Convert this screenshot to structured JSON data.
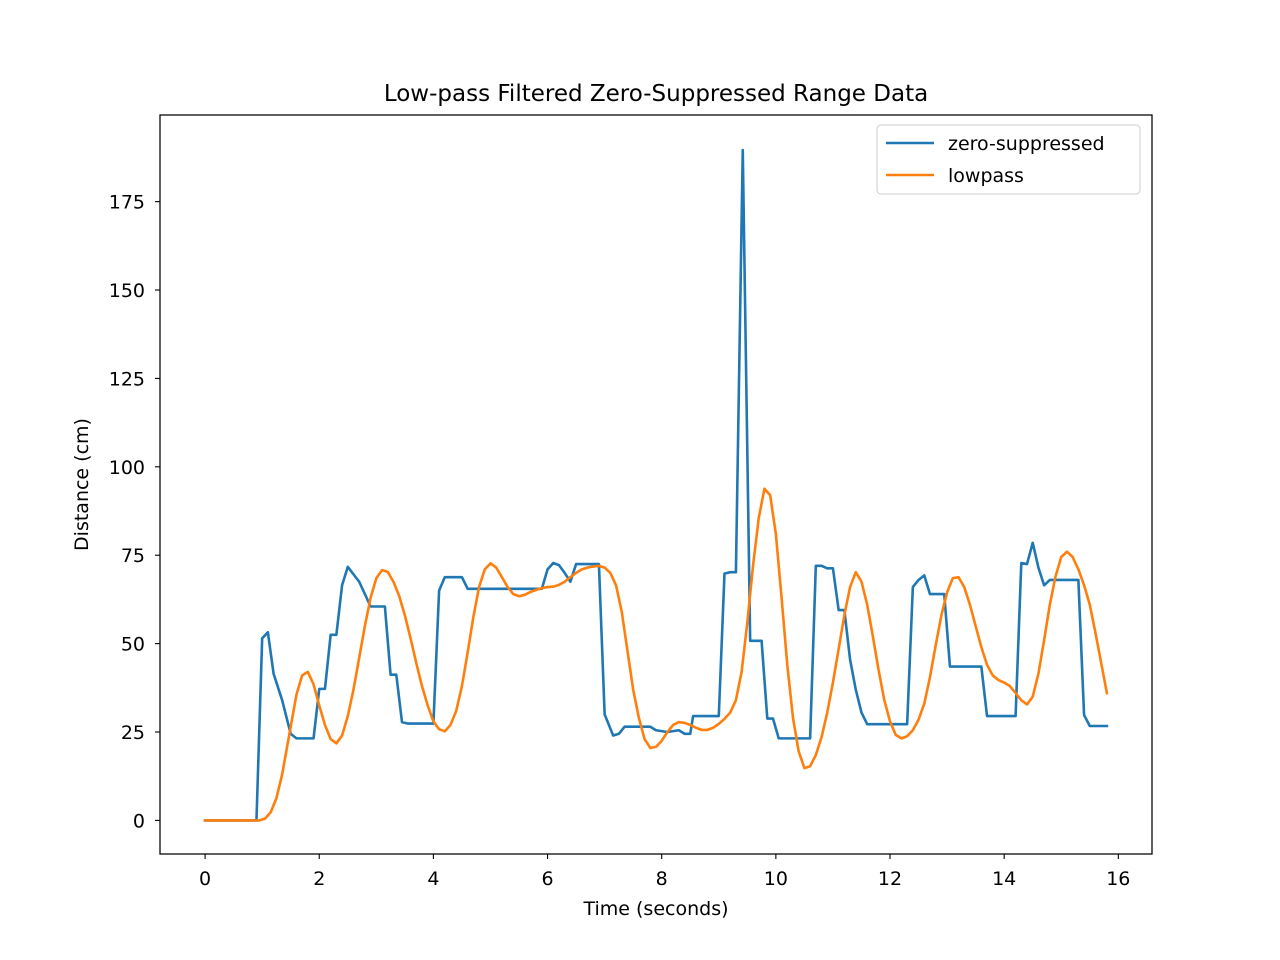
{
  "chart_data": {
    "type": "line",
    "title": "Low-pass Filtered Zero-Suppressed Range Data",
    "xlabel": "Time (seconds)",
    "ylabel": "Distance (cm)",
    "xlim": [
      -0.79,
      16.59
    ],
    "ylim": [
      -9.5,
      199.5
    ],
    "xticks": [
      0,
      2,
      4,
      6,
      8,
      10,
      12,
      14,
      16
    ],
    "yticks": [
      0,
      25,
      50,
      75,
      100,
      125,
      150,
      175
    ],
    "grid": false,
    "legend_position": "top-right",
    "series": [
      {
        "name": "zero-suppressed",
        "color": "#1f77b4",
        "points": [
          [
            0,
            0
          ],
          [
            0.9,
            0
          ],
          [
            1.0,
            51.5
          ],
          [
            1.1,
            53.2
          ],
          [
            1.2,
            41.5
          ],
          [
            1.35,
            34
          ],
          [
            1.5,
            24.5
          ],
          [
            1.6,
            23.2
          ],
          [
            1.9,
            23.2
          ],
          [
            2.0,
            37.2
          ],
          [
            2.1,
            37.2
          ],
          [
            2.2,
            52.5
          ],
          [
            2.3,
            52.5
          ],
          [
            2.4,
            66.5
          ],
          [
            2.5,
            71.7
          ],
          [
            2.7,
            67.5
          ],
          [
            2.9,
            60.5
          ],
          [
            3.15,
            60.5
          ],
          [
            3.25,
            41.2
          ],
          [
            3.35,
            41.2
          ],
          [
            3.45,
            27.8
          ],
          [
            3.55,
            27.4
          ],
          [
            4.0,
            27.4
          ],
          [
            4.1,
            65
          ],
          [
            4.2,
            68.8
          ],
          [
            4.5,
            68.8
          ],
          [
            4.6,
            65.5
          ],
          [
            5.9,
            65.5
          ],
          [
            6.0,
            71
          ],
          [
            6.1,
            72.8
          ],
          [
            6.2,
            72.2
          ],
          [
            6.3,
            70
          ],
          [
            6.4,
            67.5
          ],
          [
            6.5,
            72.5
          ],
          [
            6.9,
            72.5
          ],
          [
            7.0,
            30
          ],
          [
            7.15,
            24
          ],
          [
            7.25,
            24.5
          ],
          [
            7.35,
            26.5
          ],
          [
            7.8,
            26.5
          ],
          [
            7.9,
            25.5
          ],
          [
            8.1,
            25
          ],
          [
            8.3,
            25.5
          ],
          [
            8.4,
            24.5
          ],
          [
            8.5,
            24.5
          ],
          [
            8.55,
            29.5
          ],
          [
            9.0,
            29.5
          ],
          [
            9.1,
            69.8
          ],
          [
            9.2,
            70.2
          ],
          [
            9.3,
            70.2
          ],
          [
            9.42,
            189.6
          ],
          [
            9.55,
            50.8
          ],
          [
            9.75,
            50.8
          ],
          [
            9.85,
            28.8
          ],
          [
            9.95,
            28.8
          ],
          [
            10.05,
            23.2
          ],
          [
            10.6,
            23.2
          ],
          [
            10.7,
            72
          ],
          [
            10.8,
            72
          ],
          [
            10.9,
            71.3
          ],
          [
            11.0,
            71.3
          ],
          [
            11.1,
            59.5
          ],
          [
            11.2,
            59.5
          ],
          [
            11.3,
            45.5
          ],
          [
            11.4,
            37
          ],
          [
            11.5,
            30.5
          ],
          [
            11.6,
            27.2
          ],
          [
            12.3,
            27.2
          ],
          [
            12.4,
            66
          ],
          [
            12.5,
            68
          ],
          [
            12.6,
            69.3
          ],
          [
            12.7,
            64
          ],
          [
            12.95,
            64
          ],
          [
            13.05,
            43.5
          ],
          [
            13.6,
            43.5
          ],
          [
            13.7,
            29.5
          ],
          [
            14.2,
            29.5
          ],
          [
            14.3,
            72.8
          ],
          [
            14.4,
            72.5
          ],
          [
            14.5,
            78.5
          ],
          [
            14.6,
            71.5
          ],
          [
            14.7,
            66.5
          ],
          [
            14.8,
            68
          ],
          [
            15.3,
            68
          ],
          [
            15.4,
            29.8
          ],
          [
            15.5,
            26.7
          ],
          [
            15.8,
            26.7
          ]
        ]
      },
      {
        "name": "lowpass",
        "color": "#ff7f0e",
        "points": [
          [
            0,
            0
          ],
          [
            0.95,
            0
          ],
          [
            1.05,
            0.5
          ],
          [
            1.15,
            2.3
          ],
          [
            1.25,
            6.3
          ],
          [
            1.35,
            13
          ],
          [
            1.45,
            22
          ],
          [
            1.55,
            31
          ],
          [
            1.6,
            35.5
          ],
          [
            1.7,
            41
          ],
          [
            1.8,
            42
          ],
          [
            1.9,
            38.5
          ],
          [
            2.0,
            32.5
          ],
          [
            2.1,
            27
          ],
          [
            2.2,
            23
          ],
          [
            2.3,
            21.8
          ],
          [
            2.4,
            24
          ],
          [
            2.5,
            29.5
          ],
          [
            2.6,
            37
          ],
          [
            2.7,
            46
          ],
          [
            2.8,
            55
          ],
          [
            2.9,
            63
          ],
          [
            3.0,
            68.5
          ],
          [
            3.1,
            70.8
          ],
          [
            3.2,
            70.3
          ],
          [
            3.3,
            67.5
          ],
          [
            3.4,
            63.5
          ],
          [
            3.5,
            58
          ],
          [
            3.6,
            51.5
          ],
          [
            3.7,
            44.5
          ],
          [
            3.8,
            38
          ],
          [
            3.9,
            32.5
          ],
          [
            4.0,
            28
          ],
          [
            4.1,
            25.8
          ],
          [
            4.2,
            25.2
          ],
          [
            4.3,
            27
          ],
          [
            4.4,
            31
          ],
          [
            4.5,
            38
          ],
          [
            4.6,
            47.5
          ],
          [
            4.7,
            57.5
          ],
          [
            4.8,
            66
          ],
          [
            4.9,
            71
          ],
          [
            5.0,
            72.7
          ],
          [
            5.1,
            71.5
          ],
          [
            5.2,
            68.8
          ],
          [
            5.3,
            66
          ],
          [
            5.4,
            64
          ],
          [
            5.5,
            63.4
          ],
          [
            5.6,
            63.8
          ],
          [
            5.7,
            64.6
          ],
          [
            5.8,
            65.2
          ],
          [
            5.9,
            65.7
          ],
          [
            6.0,
            66
          ],
          [
            6.1,
            66.1
          ],
          [
            6.2,
            66.6
          ],
          [
            6.3,
            67.5
          ],
          [
            6.4,
            68.8
          ],
          [
            6.5,
            70
          ],
          [
            6.6,
            71
          ],
          [
            6.7,
            71.5
          ],
          [
            6.8,
            71.8
          ],
          [
            6.9,
            72
          ],
          [
            7.0,
            71.5
          ],
          [
            7.1,
            70
          ],
          [
            7.2,
            66.5
          ],
          [
            7.3,
            59
          ],
          [
            7.4,
            48
          ],
          [
            7.5,
            37
          ],
          [
            7.6,
            29
          ],
          [
            7.7,
            23
          ],
          [
            7.8,
            20.5
          ],
          [
            7.9,
            20.8
          ],
          [
            8.0,
            22.5
          ],
          [
            8.1,
            25
          ],
          [
            8.2,
            27
          ],
          [
            8.3,
            27.8
          ],
          [
            8.4,
            27.6
          ],
          [
            8.5,
            27
          ],
          [
            8.6,
            26.2
          ],
          [
            8.7,
            25.6
          ],
          [
            8.8,
            25.6
          ],
          [
            8.9,
            26.2
          ],
          [
            9.0,
            27.3
          ],
          [
            9.1,
            28.7
          ],
          [
            9.2,
            30.5
          ],
          [
            9.3,
            34
          ],
          [
            9.4,
            42
          ],
          [
            9.5,
            56
          ],
          [
            9.6,
            72
          ],
          [
            9.7,
            85.5
          ],
          [
            9.8,
            93.8
          ],
          [
            9.9,
            92
          ],
          [
            10.0,
            81
          ],
          [
            10.1,
            63
          ],
          [
            10.2,
            44
          ],
          [
            10.3,
            29
          ],
          [
            10.4,
            19.5
          ],
          [
            10.5,
            14.8
          ],
          [
            10.6,
            15.3
          ],
          [
            10.7,
            18.5
          ],
          [
            10.8,
            23.5
          ],
          [
            10.9,
            30.5
          ],
          [
            11.0,
            39
          ],
          [
            11.1,
            48.5
          ],
          [
            11.2,
            58
          ],
          [
            11.3,
            66
          ],
          [
            11.4,
            70.2
          ],
          [
            11.5,
            67.5
          ],
          [
            11.6,
            61
          ],
          [
            11.7,
            52
          ],
          [
            11.8,
            42.5
          ],
          [
            11.9,
            34
          ],
          [
            12.0,
            28
          ],
          [
            12.1,
            24.2
          ],
          [
            12.2,
            23.2
          ],
          [
            12.3,
            23.8
          ],
          [
            12.4,
            25.5
          ],
          [
            12.5,
            28.5
          ],
          [
            12.6,
            33
          ],
          [
            12.7,
            40.5
          ],
          [
            12.8,
            49.5
          ],
          [
            12.9,
            58
          ],
          [
            13.0,
            64.5
          ],
          [
            13.1,
            68.5
          ],
          [
            13.2,
            68.8
          ],
          [
            13.3,
            66
          ],
          [
            13.4,
            61
          ],
          [
            13.5,
            55
          ],
          [
            13.6,
            49
          ],
          [
            13.7,
            44
          ],
          [
            13.8,
            41
          ],
          [
            13.9,
            39.7
          ],
          [
            14.0,
            39
          ],
          [
            14.1,
            38
          ],
          [
            14.2,
            36
          ],
          [
            14.3,
            34
          ],
          [
            14.4,
            32.8
          ],
          [
            14.5,
            35
          ],
          [
            14.6,
            41.5
          ],
          [
            14.7,
            51
          ],
          [
            14.8,
            61
          ],
          [
            14.9,
            69
          ],
          [
            15.0,
            74.5
          ],
          [
            15.1,
            76
          ],
          [
            15.2,
            74.5
          ],
          [
            15.3,
            71
          ],
          [
            15.4,
            66.5
          ],
          [
            15.5,
            61
          ],
          [
            15.6,
            53
          ],
          [
            15.7,
            44.5
          ],
          [
            15.8,
            36
          ]
        ]
      }
    ]
  }
}
